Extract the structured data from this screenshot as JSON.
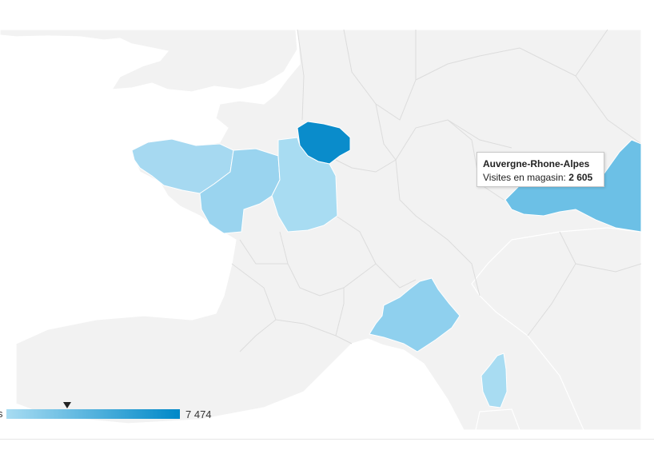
{
  "map": {
    "metric_label": "Visites en magasin",
    "colors": {
      "land": "#f2f2f2",
      "sea": "#ffffff",
      "scale_min": "#a8dcf2",
      "scale_max": "#0088c8"
    },
    "highlighted_regions": [
      {
        "name": "Ile-de-France",
        "color": "#0a8ccb"
      },
      {
        "name": "Bretagne",
        "color": "#a6d9f1"
      },
      {
        "name": "Pays de la Loire",
        "color": "#9ad4ef"
      },
      {
        "name": "Centre-Val de Loire",
        "color": "#a8dcf2"
      },
      {
        "name": "Auvergne-Rhone-Alpes",
        "color": "#6cc0e6",
        "value": 2605
      },
      {
        "name": "Provence-Alpes-Cote d'Azur",
        "color": "#8fd0ee"
      },
      {
        "name": "Corse",
        "color": "#a8dcf2"
      }
    ]
  },
  "tooltip": {
    "title": "Auvergne-Rhone-Alpes",
    "label": "Visites en magasin:",
    "value": "2 605"
  },
  "legend": {
    "left_glyph": "s",
    "max_label": "7 474",
    "marker_value_fraction": 0.348
  }
}
